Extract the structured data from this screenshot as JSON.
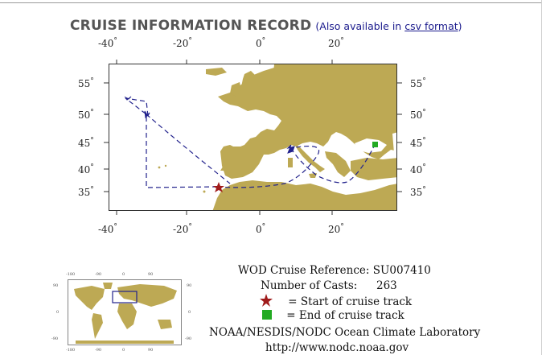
{
  "header": {
    "title": "CRUISE INFORMATION RECORD",
    "note_prefix": "(Also available in ",
    "note_link": "csv format",
    "note_suffix": ")"
  },
  "map": {
    "lon_ticks_top": [
      "-40",
      "-20",
      "0",
      "20"
    ],
    "lon_ticks_bottom": [
      "-40",
      "-20",
      "0",
      "20"
    ],
    "lat_ticks_left": [
      "55",
      "50",
      "45",
      "40",
      "35"
    ],
    "lat_ticks_right": [
      "55",
      "50",
      "45",
      "40",
      "35"
    ],
    "land_color": "#bda954",
    "track_color": "#22228c",
    "start_marker_color": "#a01b1b",
    "end_marker_color": "#22aa22"
  },
  "info": {
    "reference_label": "WOD Cruise Reference:",
    "reference_value": "SU007410",
    "casts_label": "Number of Casts:",
    "casts_value": "263",
    "legend_start": "= Start of cruise track",
    "legend_end": "= End of cruise track",
    "lab": "NOAA/NESDIS/NODC Ocean Climate Laboratory",
    "url": "http://www.nodc.noaa.gov"
  },
  "minimap": {
    "top_ticks": [
      "-180",
      "-90",
      "0",
      "90"
    ],
    "bottom_ticks": [
      "-180",
      "-90",
      "0",
      "90"
    ],
    "left_ticks": [
      "90",
      "0",
      "-90"
    ],
    "right_ticks": [
      "90",
      "0",
      "-90"
    ]
  }
}
